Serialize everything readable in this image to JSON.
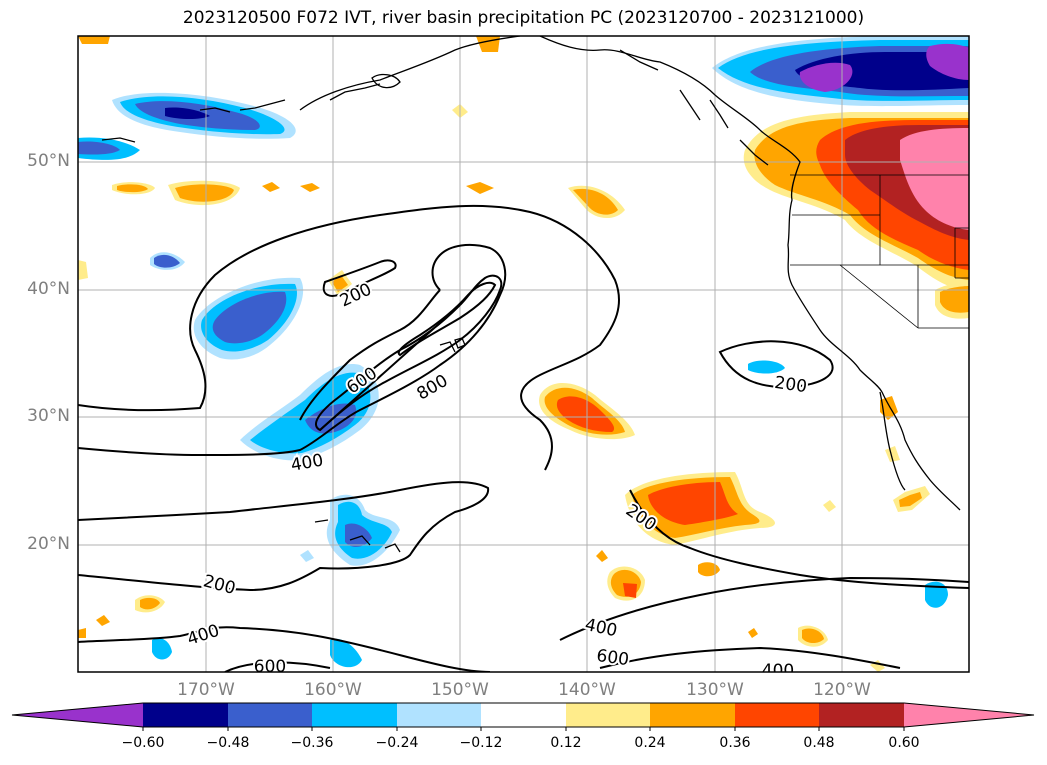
{
  "title": "2023120500 F072 IVT, river basin precipitation PC (2023120700 - 2023121000)",
  "lat_labels": [
    "50°N",
    "40°N",
    "30°N",
    "20°N"
  ],
  "lon_labels": [
    "170°W",
    "160°W",
    "150°W",
    "140°W",
    "130°W",
    "120°W"
  ],
  "contour_labels": [
    {
      "text": "200",
      "id": "200-north"
    },
    {
      "text": "600",
      "id": "600-core"
    },
    {
      "text": "800",
      "id": "800-core"
    },
    {
      "text": "400",
      "id": "400-core"
    },
    {
      "text": "200",
      "id": "200-east"
    },
    {
      "text": "200",
      "id": "200-south-east"
    },
    {
      "text": "200",
      "id": "200-south-west"
    },
    {
      "text": "400",
      "id": "400-south-west"
    },
    {
      "text": "400",
      "id": "400-south-east"
    },
    {
      "text": "600",
      "id": "600-south-east"
    },
    {
      "text": "600",
      "id": "600-south-west"
    },
    {
      "text": "400",
      "id": "400-far-south-east"
    }
  ],
  "colorbar": {
    "ticks": [
      "−0.60",
      "−0.48",
      "−0.36",
      "−0.24",
      "−0.12",
      "0.12",
      "0.24",
      "0.36",
      "0.48",
      "0.60"
    ],
    "colors": [
      "#9932cc",
      "#00008b",
      "#3a5fcd",
      "#00bfff",
      "#b0e2ff",
      "#ffffff",
      "#ffec8b",
      "#ffa500",
      "#ff4500",
      "#b22222",
      "#ff82ab"
    ]
  }
}
